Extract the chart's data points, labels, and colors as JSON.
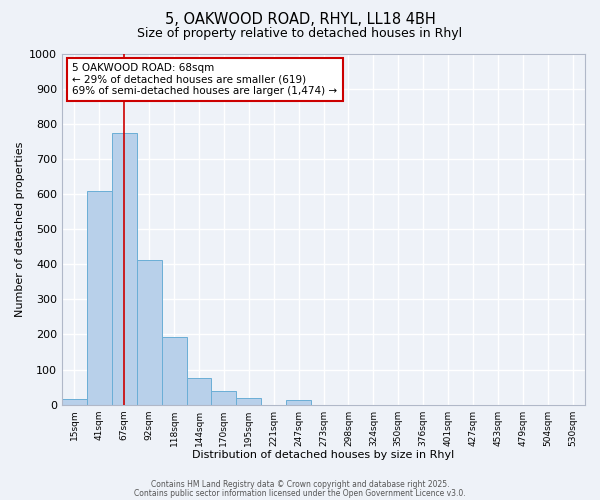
{
  "title_line1": "5, OAKWOOD ROAD, RHYL, LL18 4BH",
  "title_line2": "Size of property relative to detached houses in Rhyl",
  "xlabel": "Distribution of detached houses by size in Rhyl",
  "ylabel": "Number of detached properties",
  "bin_labels": [
    "15sqm",
    "41sqm",
    "67sqm",
    "92sqm",
    "118sqm",
    "144sqm",
    "170sqm",
    "195sqm",
    "221sqm",
    "247sqm",
    "273sqm",
    "298sqm",
    "324sqm",
    "350sqm",
    "376sqm",
    "401sqm",
    "427sqm",
    "453sqm",
    "479sqm",
    "504sqm",
    "530sqm"
  ],
  "bar_values": [
    15,
    608,
    775,
    413,
    192,
    75,
    38,
    18,
    0,
    12,
    0,
    0,
    0,
    0,
    0,
    0,
    0,
    0,
    0,
    0,
    0
  ],
  "bar_color": "#b8d0ea",
  "bar_edge_color": "#6aaed6",
  "background_color": "#eef2f8",
  "grid_color": "#ffffff",
  "vline_color": "#cc0000",
  "ylim": [
    0,
    1000
  ],
  "yticks": [
    0,
    100,
    200,
    300,
    400,
    500,
    600,
    700,
    800,
    900,
    1000
  ],
  "annotation_text": "5 OAKWOOD ROAD: 68sqm\n← 29% of detached houses are smaller (619)\n69% of semi-detached houses are larger (1,474) →",
  "annotation_box_color": "#ffffff",
  "annotation_box_edge": "#cc0000",
  "footer_line1": "Contains HM Land Registry data © Crown copyright and database right 2025.",
  "footer_line2": "Contains public sector information licensed under the Open Government Licence v3.0.",
  "vline_pos": 2.0
}
